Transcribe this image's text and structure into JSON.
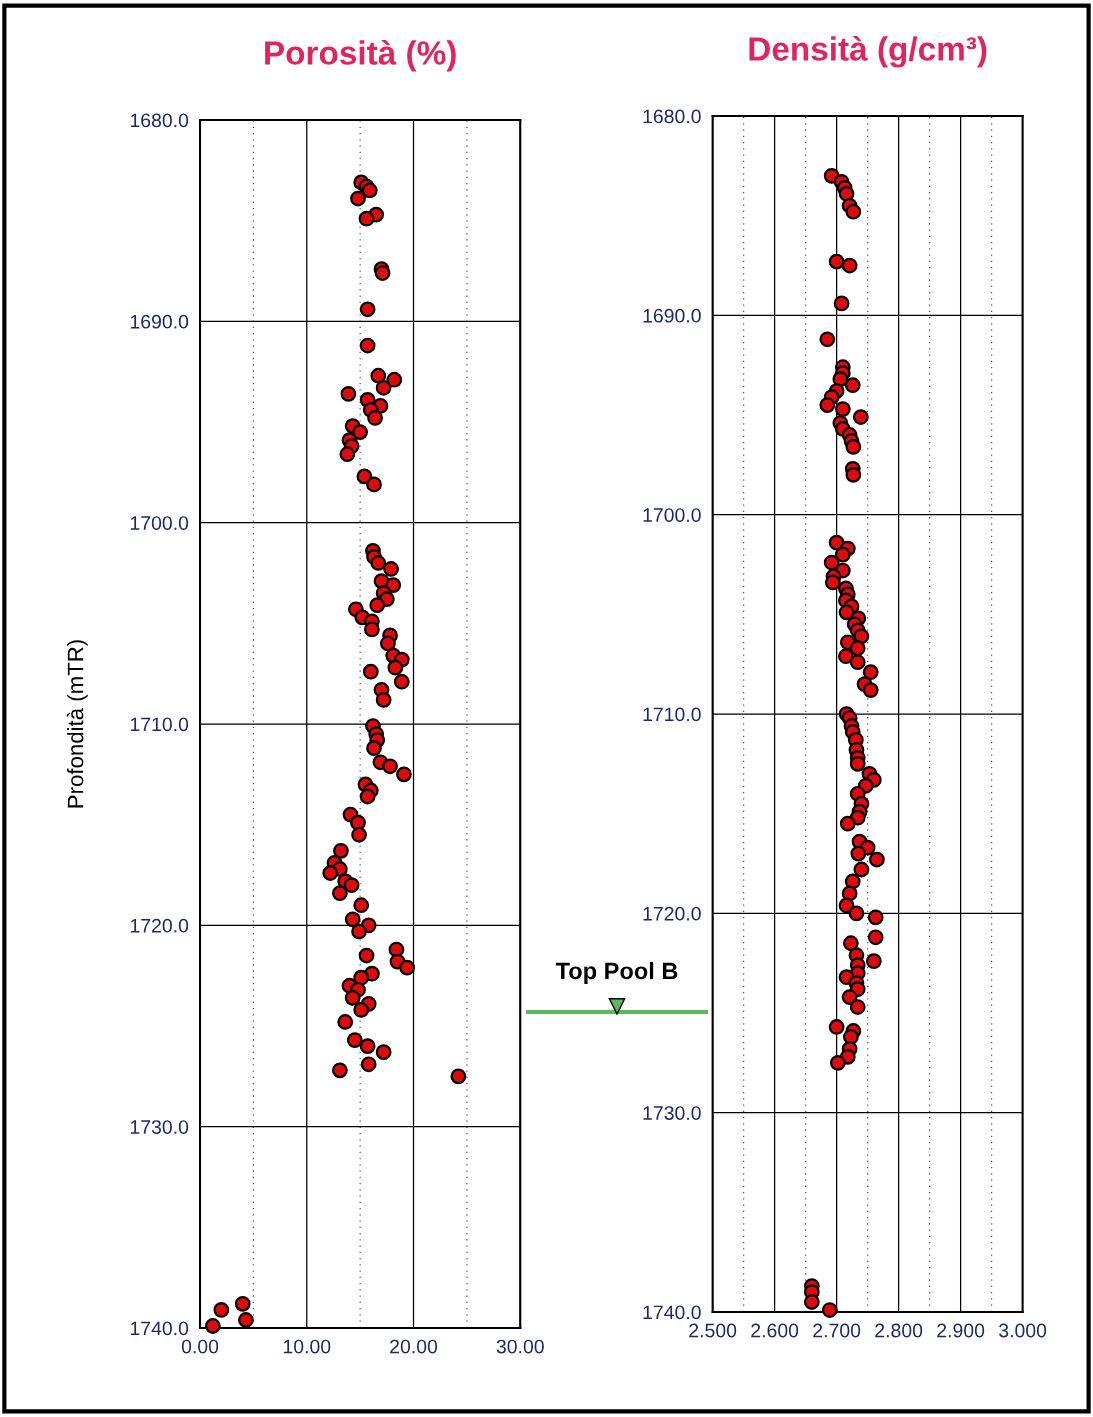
{
  "chart_data": [
    {
      "type": "scatter",
      "title": "Porosità (%)",
      "ylabel": "Profondità (mTR)",
      "marker": "circle",
      "grid": true,
      "xlim": [
        0,
        30
      ],
      "xticks": [
        {
          "value": 0,
          "label": "0.00"
        },
        {
          "value": 5,
          "label": null
        },
        {
          "value": 10,
          "label": "10.00"
        },
        {
          "value": 15,
          "label": null
        },
        {
          "value": 20,
          "label": "20.00"
        },
        {
          "value": 25,
          "label": null
        },
        {
          "value": 30,
          "label": "30.00"
        }
      ],
      "ylim": [
        1740,
        1680
      ],
      "yticks": [
        {
          "value": 1680,
          "label": "1680.0"
        },
        {
          "value": 1690,
          "label": "1690.0"
        },
        {
          "value": 1700,
          "label": "1700.0"
        },
        {
          "value": 1710,
          "label": "1710.0"
        },
        {
          "value": 1720,
          "label": "1720.0"
        },
        {
          "value": 1730,
          "label": "1730.0"
        },
        {
          "value": 1740,
          "label": "1740.0"
        }
      ],
      "annotations": [
        "Top Pool B"
      ],
      "series": [
        {
          "color": "#e00a0a",
          "x": [
            15.1,
            15.6,
            15.9,
            14.8,
            16.5,
            15.6,
            17.0,
            17.1,
            15.7,
            15.7,
            16.7,
            18.2,
            17.2,
            13.9,
            15.7,
            16.9,
            16.0,
            16.4,
            14.3,
            15.0,
            14.0,
            14.2,
            13.8,
            15.4,
            16.3,
            16.2,
            16.3,
            16.7,
            17.9,
            17.0,
            18.1,
            17.2,
            17.5,
            16.6,
            14.6,
            15.2,
            16.1,
            16.1,
            17.8,
            17.6,
            18.1,
            18.9,
            18.3,
            16.0,
            18.9,
            17.0,
            17.2,
            16.2,
            16.5,
            16.6,
            16.3,
            16.9,
            17.8,
            19.1,
            15.5,
            16.0,
            15.7,
            14.1,
            14.8,
            14.9,
            13.2,
            12.6,
            13.1,
            12.2,
            13.6,
            14.2,
            13.1,
            15.1,
            14.3,
            15.8,
            14.9,
            15.6,
            18.4,
            18.5,
            19.4,
            16.1,
            15.1,
            14.0,
            14.8,
            14.3,
            15.8,
            15.1,
            13.6,
            14.5,
            15.7,
            17.2,
            15.8,
            13.1,
            24.2,
            2.0,
            4.0,
            4.3,
            1.2
          ],
          "values": [
            1683.1,
            1683.3,
            1683.5,
            1683.9,
            1684.7,
            1684.9,
            1687.4,
            1687.6,
            1689.4,
            1691.2,
            1692.7,
            1692.9,
            1693.3,
            1693.6,
            1693.9,
            1694.2,
            1694.4,
            1694.8,
            1695.2,
            1695.5,
            1695.9,
            1696.2,
            1696.6,
            1697.7,
            1698.1,
            1701.4,
            1701.7,
            1702.0,
            1702.3,
            1702.9,
            1703.1,
            1703.5,
            1703.8,
            1704.1,
            1704.3,
            1704.7,
            1704.9,
            1705.3,
            1705.6,
            1706.0,
            1706.6,
            1706.8,
            1707.2,
            1707.4,
            1707.9,
            1708.3,
            1708.8,
            1710.1,
            1710.5,
            1710.8,
            1711.2,
            1711.9,
            1712.1,
            1712.5,
            1713.0,
            1713.3,
            1713.6,
            1714.5,
            1714.9,
            1715.5,
            1716.3,
            1716.9,
            1717.2,
            1717.4,
            1717.8,
            1718.0,
            1718.4,
            1719.0,
            1719.7,
            1720.0,
            1720.3,
            1721.5,
            1721.2,
            1721.8,
            1722.1,
            1722.4,
            1722.6,
            1723.0,
            1723.2,
            1723.6,
            1723.9,
            1724.2,
            1724.8,
            1725.7,
            1726.0,
            1726.3,
            1726.9,
            1727.2,
            1727.5,
            1739.1,
            1738.8,
            1739.6,
            1739.9
          ]
        }
      ]
    },
    {
      "type": "scatter",
      "title": "Densità (g/cm³)",
      "marker": "circle",
      "grid": true,
      "xlim": [
        2.5,
        3.0
      ],
      "xticks": [
        {
          "value": 2.5,
          "label": "2.500"
        },
        {
          "value": 2.55,
          "label": null
        },
        {
          "value": 2.6,
          "label": "2.600"
        },
        {
          "value": 2.65,
          "label": null
        },
        {
          "value": 2.7,
          "label": "2.700"
        },
        {
          "value": 2.75,
          "label": null
        },
        {
          "value": 2.8,
          "label": "2.800"
        },
        {
          "value": 2.85,
          "label": null
        },
        {
          "value": 2.9,
          "label": "2.900"
        },
        {
          "value": 2.95,
          "label": null
        },
        {
          "value": 3.0,
          "label": "3.000"
        }
      ],
      "ylim": [
        1740,
        1680
      ],
      "yticks": [
        {
          "value": 1680,
          "label": "1680.0"
        },
        {
          "value": 1690,
          "label": "1690.0"
        },
        {
          "value": 1700,
          "label": "1700.0"
        },
        {
          "value": 1710,
          "label": "1710.0"
        },
        {
          "value": 1720,
          "label": "1720.0"
        },
        {
          "value": 1730,
          "label": "1730.0"
        },
        {
          "value": 1740,
          "label": "1740.0"
        }
      ],
      "series": [
        {
          "color": "#e00a0a",
          "x": [
            2.692,
            2.708,
            2.713,
            2.716,
            2.721,
            2.727,
            2.7,
            2.721,
            2.708,
            2.685,
            2.71,
            2.71,
            2.706,
            2.726,
            2.7,
            2.692,
            2.685,
            2.71,
            2.739,
            2.706,
            2.71,
            2.721,
            2.724,
            2.727,
            2.726,
            2.727,
            2.7,
            2.718,
            2.71,
            2.692,
            2.71,
            2.695,
            2.694,
            2.715,
            2.718,
            2.715,
            2.724,
            2.716,
            2.735,
            2.729,
            2.734,
            2.74,
            2.718,
            2.734,
            2.715,
            2.734,
            2.755,
            2.745,
            2.755,
            2.716,
            2.721,
            2.724,
            2.726,
            2.731,
            2.732,
            2.734,
            2.734,
            2.753,
            2.76,
            2.747,
            2.734,
            2.74,
            2.737,
            2.734,
            2.718,
            2.737,
            2.75,
            2.735,
            2.765,
            2.74,
            2.726,
            2.721,
            2.716,
            2.732,
            2.763,
            2.763,
            2.723,
            2.732,
            2.76,
            2.734,
            2.734,
            2.716,
            2.732,
            2.734,
            2.721,
            2.734,
            2.7,
            2.727,
            2.723,
            2.721,
            2.718,
            2.702,
            2.66,
            2.66,
            2.66,
            2.689
          ],
          "values": [
            1683.0,
            1683.3,
            1683.6,
            1683.9,
            1684.5,
            1684.8,
            1687.3,
            1687.5,
            1689.4,
            1691.2,
            1692.6,
            1692.9,
            1693.2,
            1693.5,
            1693.8,
            1694.1,
            1694.5,
            1694.7,
            1695.1,
            1695.4,
            1695.7,
            1696.0,
            1696.3,
            1696.6,
            1697.7,
            1698.0,
            1701.4,
            1701.7,
            1702.0,
            1702.4,
            1702.8,
            1703.1,
            1703.4,
            1703.7,
            1704.0,
            1704.3,
            1704.6,
            1704.9,
            1705.2,
            1705.5,
            1705.8,
            1706.1,
            1706.4,
            1706.7,
            1707.1,
            1707.4,
            1707.9,
            1708.5,
            1708.8,
            1710.0,
            1710.2,
            1710.6,
            1710.9,
            1711.3,
            1711.8,
            1712.2,
            1712.5,
            1713.0,
            1713.3,
            1713.6,
            1714.0,
            1714.5,
            1714.9,
            1715.2,
            1715.5,
            1716.4,
            1716.7,
            1717.0,
            1717.3,
            1717.8,
            1718.4,
            1719.0,
            1719.6,
            1720.0,
            1720.2,
            1721.2,
            1721.5,
            1722.1,
            1722.4,
            1722.6,
            1723.0,
            1723.2,
            1723.5,
            1723.8,
            1724.2,
            1724.7,
            1725.7,
            1725.9,
            1726.2,
            1726.8,
            1727.2,
            1727.5,
            1738.7,
            1739.0,
            1739.5,
            1739.9
          ]
        }
      ]
    }
  ]
}
